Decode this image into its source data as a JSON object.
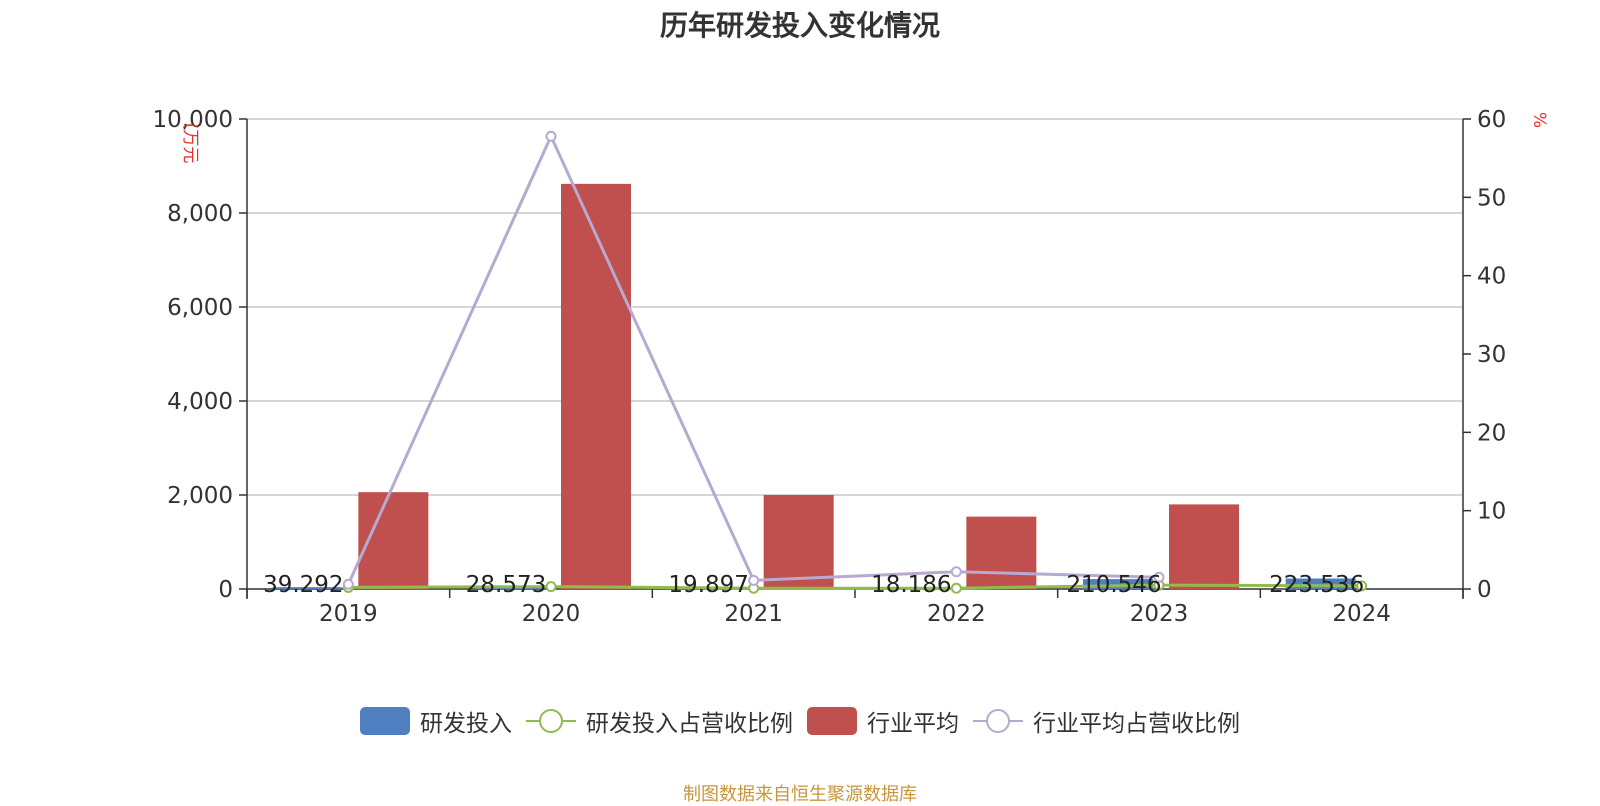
{
  "chart_data": {
    "type": "bar",
    "title": "历年研发投入变化情况",
    "categories": [
      "2019",
      "2020",
      "2021",
      "2022",
      "2023",
      "2024"
    ],
    "y_left": {
      "label": "(万元",
      "range": [
        0,
        10000
      ],
      "ticks": [
        "0",
        "2,000",
        "4,000",
        "6,000",
        "8,000",
        "10,000"
      ]
    },
    "y_right": {
      "label": "%",
      "range": [
        0,
        60
      ],
      "ticks": [
        "0",
        "10",
        "20",
        "30",
        "40",
        "50",
        "60"
      ]
    },
    "series": [
      {
        "name": "研发投入",
        "kind": "bar",
        "axis": "left",
        "color": "#4f7fc1",
        "values": [
          39.292,
          28.573,
          19.897,
          18.186,
          210.546,
          223.536
        ],
        "labels": [
          "39.292",
          "28.573",
          "19.897",
          "18.186",
          "210.546",
          "223.536"
        ]
      },
      {
        "name": "研发投入占营收比例",
        "kind": "line",
        "axis": "right",
        "color": "#92bb4e",
        "values": [
          0.2,
          0.3,
          0.1,
          0.1,
          0.5,
          0.4
        ]
      },
      {
        "name": "行业平均",
        "kind": "bar",
        "axis": "left",
        "color": "#c0504d",
        "values": [
          2060,
          8620,
          2000,
          1540,
          1800,
          null
        ]
      },
      {
        "name": "行业平均占营收比例",
        "kind": "line",
        "axis": "right",
        "color": "#b7a9d0",
        "values": [
          0.6,
          57.8,
          1.1,
          2.2,
          1.5,
          null
        ]
      }
    ],
    "grid": true,
    "legend_position": "bottom"
  },
  "source": "制图数据来自恒生聚源数据库"
}
